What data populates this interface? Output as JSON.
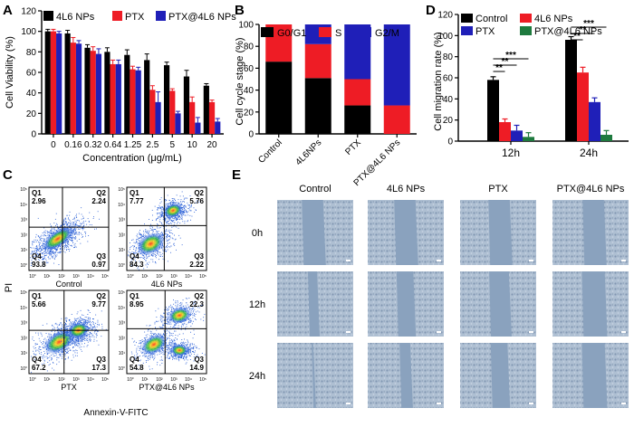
{
  "panel_letters": [
    "A",
    "B",
    "C",
    "D",
    "E"
  ],
  "colors": {
    "black": "#000000",
    "red": "#ee1c25",
    "blue": "#1f1fb8",
    "green": "#1e7a3e",
    "scatter_bg": "#ffffff"
  },
  "chart_data": [
    {
      "panel": "A",
      "type": "bar",
      "title": "",
      "xlabel": "Concentration (μg/mL)",
      "ylabel": "Cell Viability (%)",
      "ylim": [
        0,
        120
      ],
      "yticks": [
        "0",
        "20",
        "40",
        "60",
        "80",
        "100",
        "120"
      ],
      "categories": [
        "0",
        "0.16",
        "0.32",
        "0.64",
        "1.25",
        "2.5",
        "5",
        "10",
        "20"
      ],
      "series": [
        {
          "name": "4L6 NPs",
          "color": "#000000",
          "values": [
            100,
            98,
            84,
            80,
            77,
            72,
            67,
            56,
            47
          ],
          "errors": [
            2,
            3,
            3,
            4,
            5,
            6,
            3,
            6,
            2
          ]
        },
        {
          "name": "PTX",
          "color": "#ee1c25",
          "values": [
            100,
            89,
            81,
            68,
            63,
            43,
            42,
            31,
            31
          ],
          "errors": [
            2,
            5,
            4,
            4,
            3,
            4,
            2,
            5,
            2
          ]
        },
        {
          "name": "PTX@4L6 NPs",
          "color": "#1f1fb8",
          "values": [
            98,
            88,
            78,
            68,
            62,
            31,
            20,
            11,
            12
          ],
          "errors": [
            2,
            3,
            5,
            4,
            3,
            10,
            2,
            5,
            3
          ]
        }
      ]
    },
    {
      "panel": "B",
      "type": "bar",
      "stacked": true,
      "ylabel": "Cell cycle stage (%)",
      "ylim": [
        0,
        100
      ],
      "yticks": [
        "0",
        "20",
        "40",
        "60",
        "80",
        "100"
      ],
      "categories": [
        "Control",
        "4L6NPs",
        "PTX",
        "PTX@4L6 NPs"
      ],
      "series": [
        {
          "name": "G0/G1",
          "color": "#000000",
          "values": [
            66,
            51,
            26,
            0
          ]
        },
        {
          "name": "S",
          "color": "#ee1c25",
          "values": [
            34,
            31,
            24,
            26
          ]
        },
        {
          "name": "G2/M",
          "color": "#1f1fb8",
          "values": [
            0,
            18,
            50,
            74
          ]
        }
      ]
    },
    {
      "panel": "D",
      "type": "bar",
      "ylabel": "Cell migration rate (%)",
      "ylim": [
        0,
        120
      ],
      "yticks": [
        "0",
        "20",
        "40",
        "60",
        "80",
        "100",
        "120"
      ],
      "categories": [
        "12h",
        "24h"
      ],
      "series": [
        {
          "name": "Control",
          "color": "#000000",
          "values": [
            58,
            96
          ],
          "errors": [
            3,
            3
          ]
        },
        {
          "name": "4L6 NPs",
          "color": "#ee1c25",
          "values": [
            18,
            65
          ],
          "errors": [
            3,
            5
          ]
        },
        {
          "name": "PTX",
          "color": "#1f1fb8",
          "values": [
            10,
            37
          ],
          "errors": [
            5,
            4
          ]
        },
        {
          "name": "PTX@4L6 NPs",
          "color": "#1e7a3e",
          "values": [
            4,
            6
          ],
          "errors": [
            4,
            4
          ]
        }
      ],
      "significance": [
        "**",
        "**",
        "***",
        "**",
        "**",
        "***"
      ]
    },
    {
      "panel": "C",
      "type": "scatter",
      "xlabel": "Annexin-V-FITC",
      "ylabel": "PI",
      "axis_ticks": [
        "10°",
        "10¹",
        "10²",
        "10³",
        "10⁴",
        "10⁵"
      ],
      "plots": [
        {
          "name": "Control",
          "q1": "2.96",
          "q2": "2.24",
          "q3": "0.97",
          "q4": "93.8"
        },
        {
          "name": "4L6 NPs",
          "q1": "7.77",
          "q2": "5.76",
          "q3": "2.22",
          "q4": "84.3"
        },
        {
          "name": "PTX",
          "q1": "5.66",
          "q2": "9.77",
          "q3": "17.3",
          "q4": "67.2"
        },
        {
          "name": "PTX@4L6 NPs",
          "q1": "8.95",
          "q2": "22.3",
          "q3": "14.9",
          "q4": "54.8"
        }
      ]
    }
  ],
  "panel_e": {
    "columns": [
      "Control",
      "4L6 NPs",
      "PTX",
      "PTX@4L6 NPs"
    ],
    "rows": [
      "0h",
      "12h",
      "24h"
    ],
    "gap_fraction": [
      [
        0.28,
        0.28,
        0.28,
        0.28
      ],
      [
        0.12,
        0.22,
        0.26,
        0.3
      ],
      [
        0.02,
        0.14,
        0.22,
        0.3
      ]
    ]
  }
}
